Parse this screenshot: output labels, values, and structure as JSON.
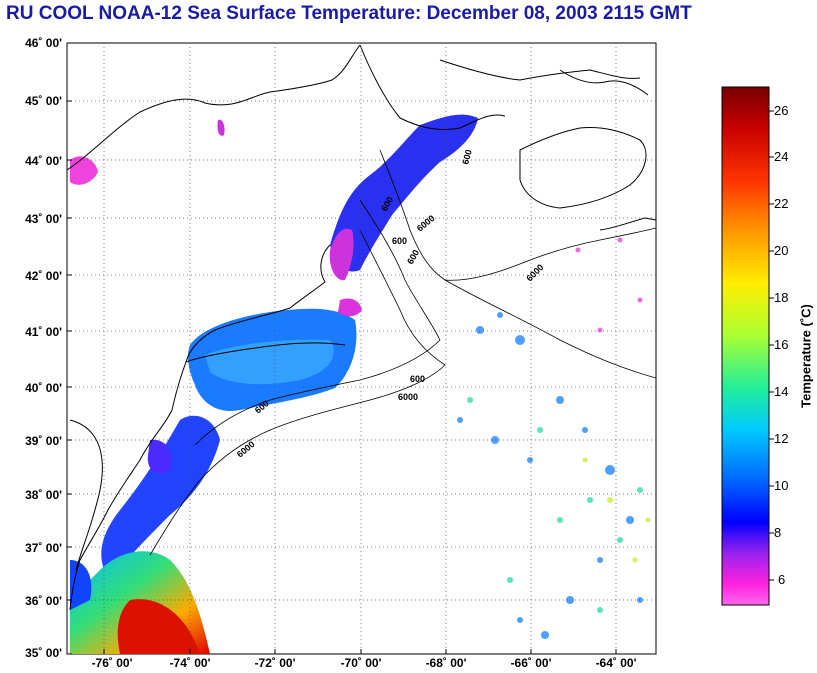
{
  "title": "RU COOL  NOAA-12  Sea Surface Temperature:  December 08, 2003 2115 GMT",
  "lat_labels": [
    "46˚ 00'",
    "45˚ 00'",
    "44˚ 00'",
    "43˚ 00'",
    "42˚ 00'",
    "41˚ 00'",
    "40˚ 00'",
    "39˚ 00'",
    "38˚ 00'",
    "37˚ 00'",
    "36˚ 00'",
    "35˚ 00'"
  ],
  "lon_labels": [
    "-76˚ 00'",
    "-74˚ 00'",
    "-72˚ 00'",
    "-70˚ 00'",
    "-68˚ 00'",
    "-66˚ 00'",
    "-64˚ 00'"
  ],
  "isobath_labels": [
    "600",
    "600",
    "600",
    "600",
    "600",
    "600",
    "6000",
    "6000",
    "6000",
    "6000"
  ],
  "colorbar": {
    "title": "Temperature (˚C)",
    "ticks": [
      "26",
      "24",
      "22",
      "20",
      "18",
      "16",
      "14",
      "12",
      "10",
      "8",
      "6"
    ]
  },
  "colors": {
    "title": "#1a1aa8",
    "land_line": "#000000",
    "grid": "#555555"
  }
}
